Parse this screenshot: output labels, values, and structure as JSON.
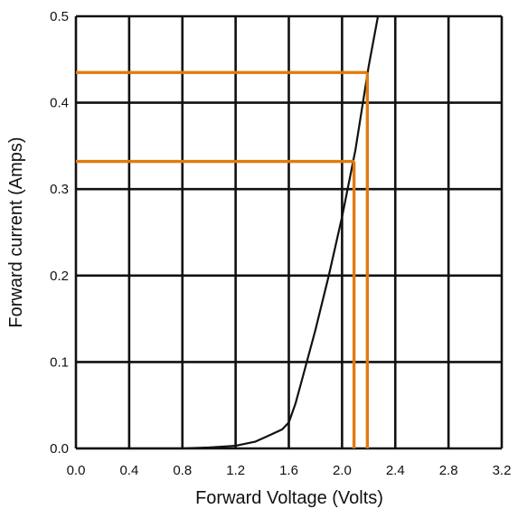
{
  "chart_data": {
    "type": "line",
    "title": "",
    "xlabel": "Forward Voltage (Volts)",
    "ylabel": "Forward current (Amps)",
    "xlim": [
      0.0,
      3.2
    ],
    "ylim": [
      0.0,
      0.5
    ],
    "x_ticks": [
      "0.0",
      "0.4",
      "0.8",
      "1.2",
      "1.6",
      "2.0",
      "2.4",
      "2.8",
      "3.2"
    ],
    "y_ticks": [
      "0.0",
      "0.1",
      "0.2",
      "0.3",
      "0.4",
      "0.5"
    ],
    "grid": true,
    "series": [
      {
        "type": "line",
        "color": "#111111",
        "x": [
          0.0,
          0.8,
          1.0,
          1.2,
          1.35,
          1.45,
          1.55,
          1.6,
          1.65,
          1.7,
          1.8,
          1.9,
          2.0,
          2.1,
          2.2,
          2.27
        ],
        "y": [
          0.0,
          0.0,
          0.001,
          0.003,
          0.008,
          0.015,
          0.022,
          0.03,
          0.052,
          0.08,
          0.137,
          0.2,
          0.268,
          0.345,
          0.442,
          0.5
        ]
      }
    ],
    "annotations": [
      {
        "type": "reference-lines",
        "color": "#e07b10",
        "x": 2.09,
        "y": 0.332
      },
      {
        "type": "reference-lines",
        "color": "#e07b10",
        "x": 2.19,
        "y": 0.435
      }
    ]
  }
}
